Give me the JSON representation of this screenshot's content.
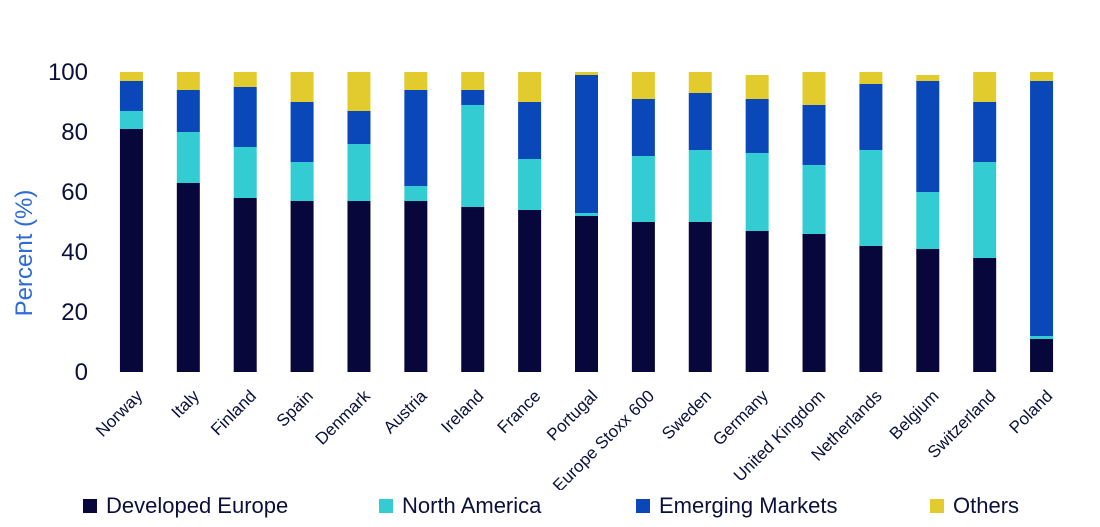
{
  "chart_data": {
    "type": "bar",
    "stacked": true,
    "title": "",
    "xlabel": "",
    "ylabel": "Percent (%)",
    "ylim": [
      0,
      100
    ],
    "yticks": [
      0,
      20,
      40,
      60,
      80,
      100
    ],
    "categories": [
      "Norway",
      "Italy",
      "Finland",
      "Spain",
      "Denmark",
      "Austria",
      "Ireland",
      "France",
      "Portugal",
      "Europe Stoxx 600",
      "Sweden",
      "Germany",
      "United Kingdom",
      "Netherlands",
      "Belgium",
      "Switzerland",
      "Poland"
    ],
    "series": [
      {
        "name": "Developed Europe",
        "color": "#07073b",
        "values": [
          81,
          63,
          58,
          57,
          57,
          57,
          55,
          54,
          52,
          50,
          50,
          47,
          46,
          42,
          41,
          38,
          11
        ]
      },
      {
        "name": "North America",
        "color": "#33ccd3",
        "values": [
          6,
          17,
          17,
          13,
          19,
          5,
          34,
          17,
          1,
          22,
          24,
          26,
          23,
          32,
          19,
          32,
          1
        ]
      },
      {
        "name": "Emerging Markets",
        "color": "#0a47b8",
        "values": [
          10,
          14,
          20,
          20,
          11,
          32,
          5,
          19,
          46,
          19,
          19,
          18,
          20,
          22,
          37,
          20,
          85
        ]
      },
      {
        "name": "Others",
        "color": "#e2cb2c",
        "values": [
          3,
          6,
          5,
          10,
          13,
          6,
          6,
          10,
          1,
          9,
          7,
          8,
          11,
          4,
          2,
          10,
          3
        ]
      }
    ],
    "legend_position": "bottom",
    "grid": false
  }
}
